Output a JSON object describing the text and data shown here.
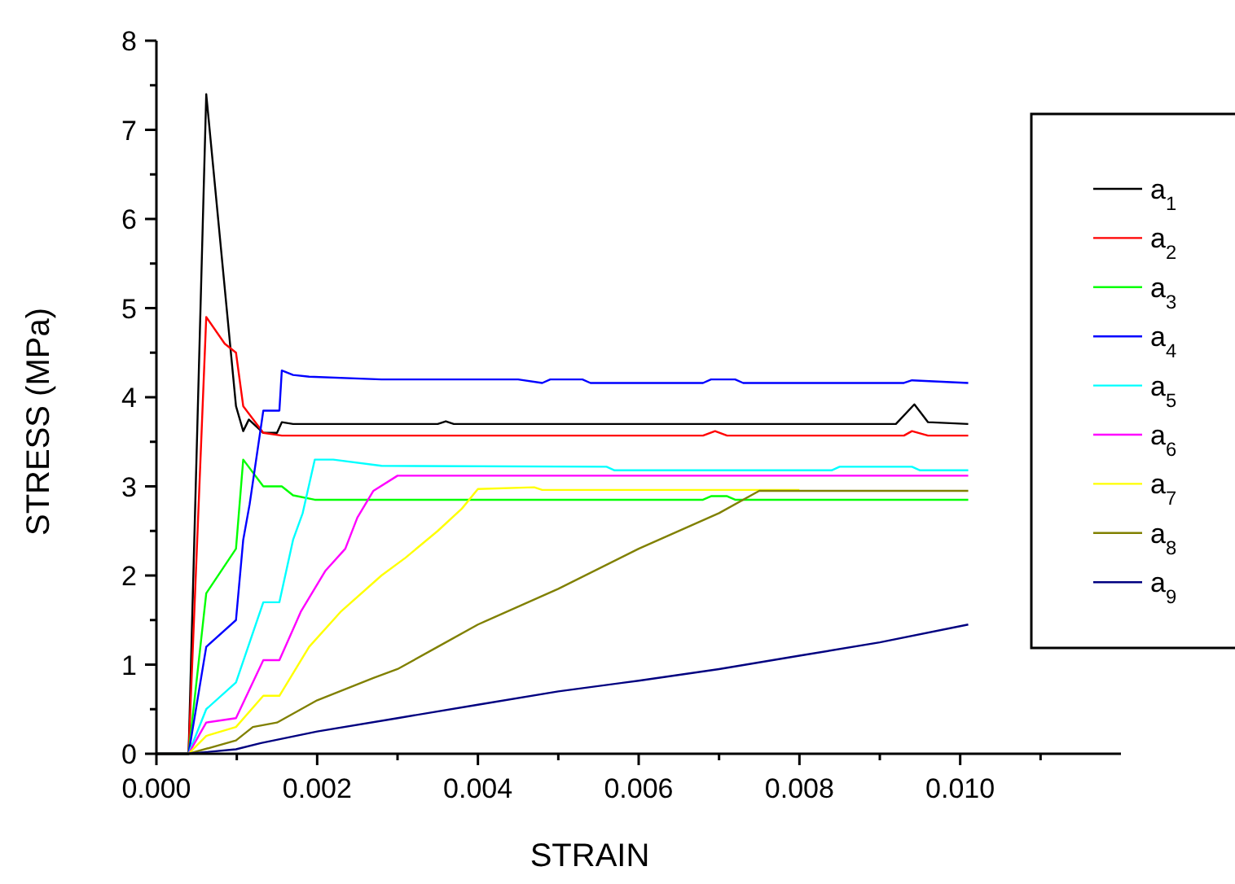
{
  "chart_data": {
    "type": "line",
    "xlabel": "STRAIN",
    "ylabel": "STRESS (MPa)",
    "xlim": [
      0,
      0.012
    ],
    "ylim": [
      0,
      8
    ],
    "xticks": [
      {
        "value": 0,
        "label": "0.000"
      },
      {
        "value": 0.001,
        "label": null
      },
      {
        "value": 0.002,
        "label": "0.002"
      },
      {
        "value": 0.003,
        "label": null
      },
      {
        "value": 0.004,
        "label": "0.004"
      },
      {
        "value": 0.005,
        "label": null
      },
      {
        "value": 0.006,
        "label": "0.006"
      },
      {
        "value": 0.007,
        "label": null
      },
      {
        "value": 0.008,
        "label": "0.008"
      },
      {
        "value": 0.009,
        "label": null
      },
      {
        "value": 0.01,
        "label": "0.010"
      },
      {
        "value": 0.011,
        "label": null
      }
    ],
    "yticks": [
      0,
      {
        "value": 0.5,
        "label": null
      },
      1,
      {
        "value": 1.5,
        "label": null
      },
      2,
      {
        "value": 2.5,
        "label": null
      },
      3,
      {
        "value": 3.5,
        "label": null
      },
      4,
      {
        "value": 4.5,
        "label": null
      },
      5,
      {
        "value": 5.5,
        "label": null
      },
      6,
      {
        "value": 6.5,
        "label": null
      },
      7,
      {
        "value": 7.5,
        "label": null
      },
      8
    ],
    "grid": false,
    "legend": "right",
    "marker": "none",
    "line_style": "solid",
    "series": [
      {
        "name": "a$_{1}$",
        "color": "#000000",
        "x": [
          0,
          0.0004,
          0.00062,
          0.00099,
          0.00108,
          0.00115,
          0.00133,
          0.0015,
          0.00156,
          0.0017,
          0.0035,
          0.0036,
          0.0037,
          0.0088,
          0.0092,
          0.00943,
          0.0096,
          0.0101
        ],
        "values": [
          0,
          0,
          7.4,
          3.9,
          3.62,
          3.75,
          3.6,
          3.6,
          3.72,
          3.7,
          3.7,
          3.73,
          3.7,
          3.7,
          3.7,
          3.92,
          3.72,
          3.7
        ]
      },
      {
        "name": "a$_{2}$",
        "color": "#ff0000",
        "x": [
          0,
          0.0004,
          0.00062,
          0.00085,
          0.00099,
          0.00108,
          0.00133,
          0.00156,
          0.0068,
          0.00695,
          0.0071,
          0.0093,
          0.0094,
          0.0096,
          0.0101
        ],
        "values": [
          0,
          0,
          4.9,
          4.6,
          4.5,
          3.9,
          3.6,
          3.57,
          3.57,
          3.62,
          3.57,
          3.57,
          3.62,
          3.57,
          3.57
        ]
      },
      {
        "name": "a$_{3}$",
        "color": "#00ff00",
        "x": [
          0,
          0.0004,
          0.00062,
          0.00099,
          0.00108,
          0.00133,
          0.00156,
          0.0017,
          0.00197,
          0.0068,
          0.0069,
          0.0071,
          0.0072,
          0.0101
        ],
        "values": [
          0,
          0,
          1.8,
          2.3,
          3.3,
          3.0,
          3.0,
          2.9,
          2.85,
          2.85,
          2.89,
          2.89,
          2.85,
          2.85
        ]
      },
      {
        "name": "a$_{4}$",
        "color": "#0000ff",
        "x": [
          0,
          0.0004,
          0.00062,
          0.00099,
          0.00108,
          0.00116,
          0.00133,
          0.00153,
          0.00156,
          0.0017,
          0.0019,
          0.0028,
          0.0045,
          0.0048,
          0.0049,
          0.0053,
          0.0054,
          0.0068,
          0.0069,
          0.0072,
          0.0073,
          0.0093,
          0.0094,
          0.0101
        ],
        "values": [
          0,
          0,
          1.2,
          1.5,
          2.4,
          2.8,
          3.85,
          3.85,
          4.3,
          4.25,
          4.23,
          4.2,
          4.2,
          4.16,
          4.2,
          4.2,
          4.16,
          4.16,
          4.2,
          4.2,
          4.16,
          4.16,
          4.19,
          4.16
        ]
      },
      {
        "name": "a$_{5}$",
        "color": "#00ffff",
        "x": [
          0,
          0.0004,
          0.00062,
          0.00099,
          0.00133,
          0.00153,
          0.0017,
          0.00182,
          0.00197,
          0.0022,
          0.0028,
          0.0056,
          0.0057,
          0.0084,
          0.0085,
          0.0094,
          0.0095,
          0.0101
        ],
        "values": [
          0,
          0,
          0.5,
          0.8,
          1.7,
          1.7,
          2.4,
          2.7,
          3.3,
          3.3,
          3.23,
          3.22,
          3.18,
          3.18,
          3.22,
          3.22,
          3.18,
          3.18
        ]
      },
      {
        "name": "a$_{6}$",
        "color": "#ff00ff",
        "x": [
          0,
          0.0004,
          0.00062,
          0.00099,
          0.00133,
          0.00153,
          0.0018,
          0.0021,
          0.00235,
          0.0025,
          0.0027,
          0.003,
          0.0101
        ],
        "values": [
          0,
          0,
          0.35,
          0.4,
          1.05,
          1.05,
          1.6,
          2.05,
          2.3,
          2.65,
          2.95,
          3.12,
          3.12
        ]
      },
      {
        "name": "a$_{7}$",
        "color": "#ffff00",
        "x": [
          0,
          0.0004,
          0.00062,
          0.00099,
          0.00133,
          0.00153,
          0.0019,
          0.0023,
          0.0028,
          0.0031,
          0.0035,
          0.0038,
          0.004,
          0.0047,
          0.0048,
          0.008
        ],
        "values": [
          0,
          0,
          0.2,
          0.3,
          0.65,
          0.65,
          1.2,
          1.6,
          2.0,
          2.2,
          2.5,
          2.75,
          2.97,
          2.99,
          2.96,
          2.96
        ]
      },
      {
        "name": "a$_{8}$",
        "color": "#808000",
        "x": [
          0,
          0.0004,
          0.00099,
          0.0012,
          0.0015,
          0.002,
          0.0027,
          0.003,
          0.0035,
          0.004,
          0.005,
          0.006,
          0.007,
          0.0075,
          0.0101
        ],
        "values": [
          0,
          0,
          0.15,
          0.3,
          0.35,
          0.6,
          0.85,
          0.95,
          1.2,
          1.45,
          1.85,
          2.3,
          2.7,
          2.95,
          2.95
        ]
      },
      {
        "name": "a$_{9}$",
        "color": "#000080",
        "x": [
          0,
          0.0004,
          0.00099,
          0.0013,
          0.002,
          0.003,
          0.004,
          0.005,
          0.006,
          0.007,
          0.008,
          0.009,
          0.0101
        ],
        "values": [
          0,
          0,
          0.05,
          0.12,
          0.25,
          0.4,
          0.55,
          0.7,
          0.82,
          0.95,
          1.1,
          1.25,
          1.45
        ]
      }
    ]
  }
}
